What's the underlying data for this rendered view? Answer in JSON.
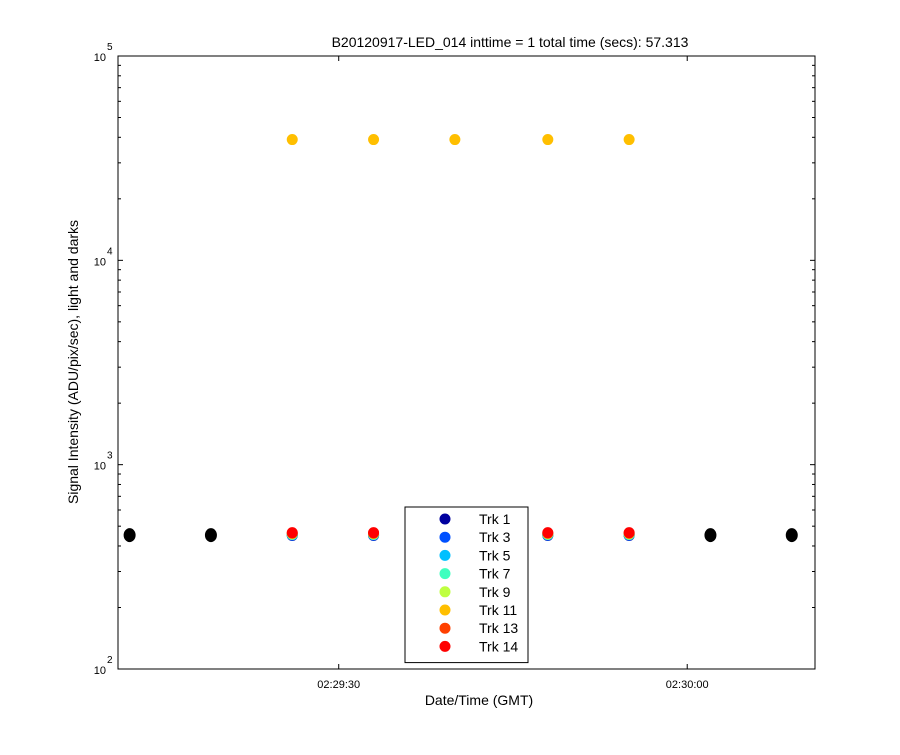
{
  "chart_data": {
    "type": "scatter",
    "title": "B20120917-LED_014 inttime = 1 total time (secs): 57.313",
    "xlabel": "Date/Time (GMT)",
    "ylabel": "Signal Intensity (ADU/pix/sec), light and darks",
    "y_scale": "log",
    "ylim": [
      100,
      100000
    ],
    "xlim": [
      "02:29:11",
      "02:30:11"
    ],
    "x_ticks": [
      "02:29:30",
      "02:30:00"
    ],
    "y_ticks": [
      {
        "base": "10",
        "exp": "2",
        "value": 100
      },
      {
        "base": "10",
        "exp": "3",
        "value": 1000
      },
      {
        "base": "10",
        "exp": "4",
        "value": 10000
      },
      {
        "base": "10",
        "exp": "5",
        "value": 100000
      }
    ],
    "grid": false,
    "legend_position": "bottom-center",
    "dark_color": "#000000",
    "series": [
      {
        "name": "Trk 1",
        "color": "#00009f",
        "x": [
          "02:29:26",
          "02:29:33",
          "02:29:40",
          "02:29:48",
          "02:29:55"
        ],
        "values": [
          450,
          450,
          450,
          450,
          450
        ]
      },
      {
        "name": "Trk 3",
        "color": "#0050ff",
        "x": [
          "02:29:26",
          "02:29:33",
          "02:29:40",
          "02:29:48",
          "02:29:55"
        ],
        "values": [
          452,
          452,
          452,
          452,
          452
        ]
      },
      {
        "name": "Trk 5",
        "color": "#00c0ff",
        "x": [
          "02:29:26",
          "02:29:33",
          "02:29:40",
          "02:29:48",
          "02:29:55"
        ],
        "values": [
          454,
          454,
          454,
          454,
          454
        ]
      },
      {
        "name": "Trk 7",
        "color": "#40ffbf",
        "x": [
          "02:29:26",
          "02:29:33",
          "02:29:40",
          "02:29:48",
          "02:29:55"
        ],
        "values": [
          456,
          456,
          456,
          456,
          456
        ]
      },
      {
        "name": "Trk 9",
        "color": "#bfff40",
        "x": [
          "02:29:26",
          "02:29:33",
          "02:29:40",
          "02:29:48",
          "02:29:55"
        ],
        "values": [
          458,
          458,
          458,
          458,
          458
        ]
      },
      {
        "name": "Trk 11",
        "color": "#ffbf00",
        "x": [
          "02:29:26",
          "02:29:33",
          "02:29:40",
          "02:29:48",
          "02:29:55"
        ],
        "values": [
          39000,
          39000,
          39000,
          39000,
          39000
        ]
      },
      {
        "name": "Trk 13",
        "color": "#ff4000",
        "x": [
          "02:29:26",
          "02:29:33",
          "02:29:40",
          "02:29:48",
          "02:29:55"
        ],
        "values": [
          462,
          462,
          462,
          462,
          462
        ]
      },
      {
        "name": "Trk 14",
        "color": "#ff0000",
        "x": [
          "02:29:26",
          "02:29:33",
          "02:29:40",
          "02:29:48",
          "02:29:55"
        ],
        "values": [
          465,
          465,
          465,
          465,
          465
        ]
      }
    ],
    "darks": {
      "x": [
        "02:29:12",
        "02:29:19",
        "02:30:02",
        "02:30:09"
      ],
      "values": [
        452,
        452,
        452,
        452
      ]
    }
  }
}
